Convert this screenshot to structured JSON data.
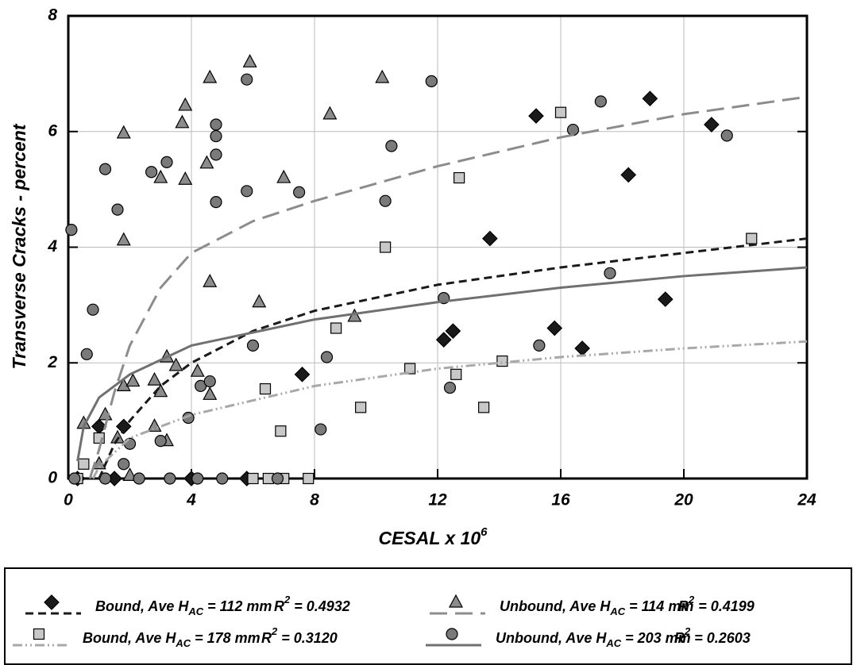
{
  "chart_data": {
    "type": "scatter",
    "ylabel": "Transverse Cracks - percent",
    "xlabel": "CESAL x 10",
    "xlabel_sup": "6",
    "xlim": [
      0,
      24
    ],
    "ylim": [
      0,
      8
    ],
    "xticks": [
      0,
      4,
      8,
      12,
      16,
      20,
      24
    ],
    "yticks": [
      0,
      2,
      4,
      6,
      8
    ],
    "grid": true,
    "series": [
      {
        "name": "Bound, Ave H",
        "name_sub": "AC",
        "name_tail": " = 112 mm",
        "r2": "R",
        "r2_sup": "2",
        "r2_tail": " = 0.4932",
        "marker": "diamond",
        "color": "#1a1a1a",
        "line_color": "#1a1a1a",
        "line_style": "dashed",
        "x": [
          0.3,
          1.0,
          1.8,
          1.5,
          4.0,
          5.8,
          7.6,
          12.2,
          12.5,
          13.7,
          15.2,
          15.8,
          16.7,
          18.2,
          18.9,
          19.4,
          20.9
        ],
        "values": [
          0,
          0.9,
          0.9,
          0,
          0,
          0,
          1.8,
          2.4,
          2.55,
          4.15,
          6.27,
          2.6,
          2.25,
          5.25,
          6.57,
          3.1,
          6.12
        ],
        "fit": {
          "x": [
            1,
            1.5,
            2,
            3,
            4,
            6,
            8,
            12,
            16,
            20,
            24
          ],
          "values": [
            0,
            0.6,
            1.0,
            1.6,
            2.0,
            2.55,
            2.9,
            3.35,
            3.65,
            3.9,
            4.15
          ]
        }
      },
      {
        "name": "Unbound, Ave H",
        "name_sub": "AC",
        "name_tail": " = 114 mm",
        "r2": "R",
        "r2_sup": "2",
        "r2_tail": " = 0.4199",
        "marker": "triangle",
        "color": "#8c8c8c",
        "line_color": "#8c8c8c",
        "line_style": "long-dashed",
        "x": [
          0.5,
          1.2,
          1.6,
          1.8,
          1.8,
          1.8,
          2.1,
          2.8,
          2.8,
          3.0,
          3.0,
          3.2,
          3.2,
          3.5,
          3.7,
          3.8,
          3.8,
          4.2,
          4.5,
          4.6,
          4.6,
          4.6,
          5.9,
          6.2,
          7.0,
          8.5,
          9.3,
          10.2,
          1.0,
          2.0
        ],
        "values": [
          0.95,
          1.1,
          0.7,
          5.97,
          4.12,
          1.6,
          1.68,
          0.9,
          1.7,
          1.5,
          5.2,
          2.1,
          0.65,
          1.95,
          6.15,
          6.45,
          5.17,
          1.85,
          5.45,
          6.93,
          3.4,
          1.45,
          7.2,
          3.05,
          5.2,
          6.3,
          2.8,
          6.93,
          0.25,
          0.05
        ],
        "fit": {
          "x": [
            0.7,
            1,
            1.5,
            2,
            3,
            4,
            6,
            8,
            12,
            16,
            20,
            24
          ],
          "values": [
            0,
            0.5,
            1.5,
            2.3,
            3.3,
            3.9,
            4.45,
            4.8,
            5.4,
            5.9,
            6.3,
            6.6
          ]
        }
      },
      {
        "name": "Bound, Ave H",
        "name_sub": "AC",
        "name_tail": " = 178 mm",
        "r2": "R",
        "r2_sup": "2",
        "r2_tail": " = 0.3120",
        "marker": "square",
        "color": "#c8c8c8",
        "line_color": "#a8a8a8",
        "line_style": "dash-dot-dot",
        "x": [
          0.5,
          1.0,
          0.3,
          6.0,
          6.5,
          7.0,
          7.8,
          6.4,
          6.9,
          8.7,
          9.5,
          10.3,
          11.1,
          12.6,
          12.7,
          13.5,
          14.1,
          16.0,
          22.2
        ],
        "values": [
          0.25,
          0.7,
          0,
          0,
          0,
          0,
          0,
          1.55,
          0.82,
          2.6,
          1.23,
          4.0,
          1.9,
          1.8,
          5.2,
          1.23,
          2.03,
          6.33,
          4.15
        ],
        "fit": {
          "x": [
            0.8,
            1,
            2,
            4,
            8,
            12,
            16,
            20,
            24
          ],
          "values": [
            0,
            0.2,
            0.7,
            1.1,
            1.6,
            1.9,
            2.1,
            2.25,
            2.37
          ]
        }
      },
      {
        "name": "Unbound, Ave H",
        "name_sub": "AC",
        "name_tail": " = 203 mm",
        "r2": "R",
        "r2_sup": "2",
        "r2_tail": " = 0.2603",
        "marker": "circle",
        "color": "#7a7a7a",
        "line_color": "#707070",
        "line_style": "solid",
        "x": [
          0.1,
          0.6,
          0.8,
          1.2,
          1.6,
          1.8,
          2.0,
          2.7,
          3.0,
          3.2,
          3.9,
          4.3,
          4.6,
          4.8,
          4.8,
          4.8,
          4.8,
          5.8,
          5.8,
          6.0,
          7.5,
          8.2,
          8.4,
          10.3,
          10.5,
          11.8,
          12.2,
          12.4,
          15.3,
          16.4,
          17.3,
          17.6,
          21.4,
          0.2,
          1.2,
          2.3,
          3.3,
          4.2,
          5.0,
          6.8
        ],
        "values": [
          4.3,
          2.15,
          2.92,
          5.35,
          4.65,
          0.25,
          0.6,
          5.3,
          0.65,
          5.47,
          1.05,
          1.6,
          1.68,
          4.78,
          5.6,
          5.92,
          6.12,
          6.9,
          4.97,
          2.3,
          4.95,
          0.85,
          2.1,
          4.8,
          5.75,
          6.87,
          3.12,
          1.57,
          2.3,
          6.03,
          6.52,
          3.55,
          5.93,
          0,
          0,
          0,
          0,
          0,
          0,
          0
        ],
        "fit": {
          "x": [
            0.3,
            0.5,
            1,
            2,
            4,
            8,
            12,
            16,
            20,
            24
          ],
          "values": [
            0.3,
            0.9,
            1.4,
            1.8,
            2.3,
            2.75,
            3.05,
            3.3,
            3.5,
            3.65
          ]
        }
      }
    ]
  }
}
